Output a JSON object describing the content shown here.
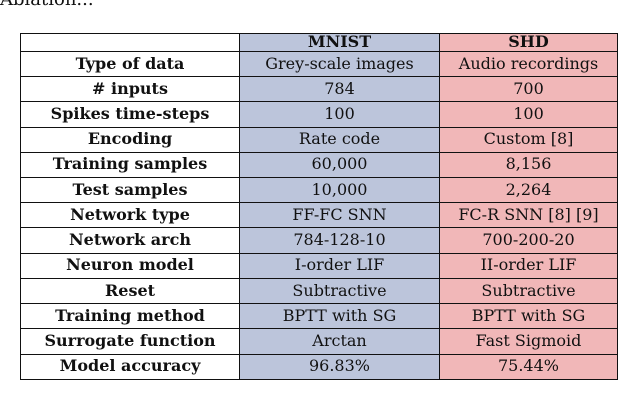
{
  "page": {
    "top_fragment": "Ablation..."
  },
  "colors": {
    "mnist_bg": "#bcc5db",
    "shd_bg": "#f1b7b8"
  },
  "table": {
    "headers": [
      "",
      "MNIST",
      "SHD"
    ],
    "rows": [
      {
        "label": "Type of data",
        "mnist": "Grey-scale images",
        "shd": "Audio recordings"
      },
      {
        "label": "# inputs",
        "mnist": "784",
        "shd": "700"
      },
      {
        "label": "Spikes time-steps",
        "mnist": "100",
        "shd": "100"
      },
      {
        "label": "Encoding",
        "mnist": "Rate code",
        "shd": "Custom [8]"
      },
      {
        "label": "Training samples",
        "mnist": "60,000",
        "shd": "8,156"
      },
      {
        "label": "Test samples",
        "mnist": "10,000",
        "shd": "2,264"
      },
      {
        "label": "Network type",
        "mnist": "FF-FC SNN",
        "shd": "FC-R SNN [8] [9]"
      },
      {
        "label": "Network arch",
        "mnist": "784-128-10",
        "shd": "700-200-20"
      },
      {
        "label": "Neuron model",
        "mnist": "I-order LIF",
        "shd": "II-order LIF"
      },
      {
        "label": "Reset",
        "mnist": "Subtractive",
        "shd": "Subtractive"
      },
      {
        "label": "Training method",
        "mnist": "BPTT with SG",
        "shd": "BPTT with SG"
      },
      {
        "label": "Surrogate function",
        "mnist": "Arctan",
        "shd": "Fast Sigmoid"
      },
      {
        "label": "Model accuracy",
        "mnist": "96.83%",
        "shd": "75.44%"
      }
    ]
  }
}
